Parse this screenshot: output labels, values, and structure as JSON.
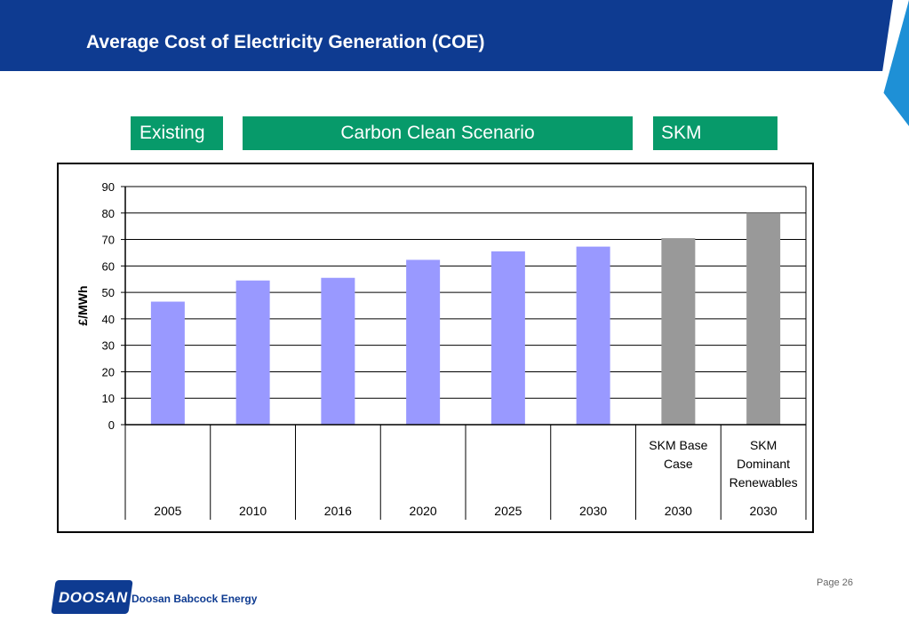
{
  "slide": {
    "title": "Average Cost of Electricity Generation (COE)",
    "page_label": "Page 26",
    "company": "Doosan Babcock Energy",
    "logo_text": "DOOSAN"
  },
  "groups": {
    "existing": "Existing",
    "carbon": "Carbon Clean Scenario",
    "skm": "SKM"
  },
  "colors": {
    "header": "#0e3b91",
    "group_band": "#079a6a",
    "bar_scenario": "#9999ff",
    "bar_skm": "#999999",
    "accent_cyan": "#1e90d6"
  },
  "chart_data": {
    "type": "bar",
    "title": "",
    "xlabel": "",
    "ylabel": "£/MWh",
    "ylim": [
      0,
      90
    ],
    "yticks": [
      0,
      10,
      20,
      30,
      40,
      50,
      60,
      70,
      80,
      90
    ],
    "grid": true,
    "legend": "none",
    "categories": [
      {
        "year": "2005",
        "label": ""
      },
      {
        "year": "2010",
        "label": ""
      },
      {
        "year": "2016",
        "label": ""
      },
      {
        "year": "2020",
        "label": ""
      },
      {
        "year": "2025",
        "label": ""
      },
      {
        "year": "2030",
        "label": ""
      },
      {
        "year": "2030",
        "label": "SKM Base Case"
      },
      {
        "year": "2030",
        "label": "SKM Dominant Renewables"
      }
    ],
    "values": [
      46.5,
      54.5,
      55.5,
      62.3,
      65.5,
      67.3,
      70.5,
      80.0
    ],
    "bar_colors": [
      "#9999ff",
      "#9999ff",
      "#9999ff",
      "#9999ff",
      "#9999ff",
      "#9999ff",
      "#999999",
      "#999999"
    ]
  }
}
